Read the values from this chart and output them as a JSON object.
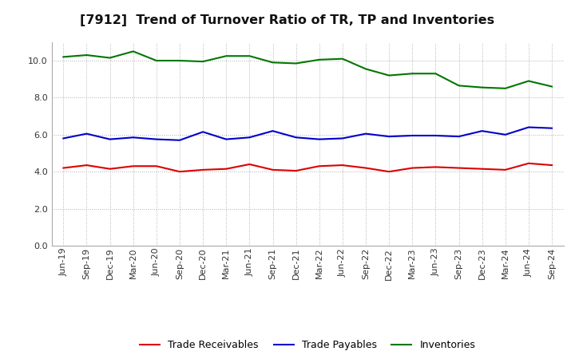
{
  "title": "[7912]  Trend of Turnover Ratio of TR, TP and Inventories",
  "x_labels": [
    "Jun-19",
    "Sep-19",
    "Dec-19",
    "Mar-20",
    "Jun-20",
    "Sep-20",
    "Dec-20",
    "Mar-21",
    "Jun-21",
    "Sep-21",
    "Dec-21",
    "Mar-22",
    "Jun-22",
    "Sep-22",
    "Dec-22",
    "Mar-23",
    "Jun-23",
    "Sep-23",
    "Dec-23",
    "Mar-24",
    "Jun-24",
    "Sep-24"
  ],
  "trade_receivables": [
    4.2,
    4.35,
    4.15,
    4.3,
    4.3,
    4.0,
    4.1,
    4.15,
    4.4,
    4.1,
    4.05,
    4.3,
    4.35,
    4.2,
    4.0,
    4.2,
    4.25,
    4.2,
    4.15,
    4.1,
    4.45,
    4.35
  ],
  "trade_payables": [
    5.8,
    6.05,
    5.75,
    5.85,
    5.75,
    5.7,
    6.15,
    5.75,
    5.85,
    6.2,
    5.85,
    5.75,
    5.8,
    6.05,
    5.9,
    5.95,
    5.95,
    5.9,
    6.2,
    6.0,
    6.4,
    6.35
  ],
  "inventories": [
    10.2,
    10.3,
    10.15,
    10.5,
    10.0,
    10.0,
    9.95,
    10.25,
    10.25,
    9.9,
    9.85,
    10.05,
    10.1,
    9.55,
    9.2,
    9.3,
    9.3,
    8.65,
    8.55,
    8.5,
    8.9,
    8.6
  ],
  "ylim": [
    0.0,
    11.0
  ],
  "yticks": [
    0.0,
    2.0,
    4.0,
    6.0,
    8.0,
    10.0
  ],
  "line_colors": {
    "trade_receivables": "#dd0000",
    "trade_payables": "#0000cc",
    "inventories": "#007700"
  },
  "legend_labels": [
    "Trade Receivables",
    "Trade Payables",
    "Inventories"
  ],
  "background_color": "#ffffff",
  "plot_bg_color": "#ffffff",
  "grid_color": "#999999",
  "title_fontsize": 11.5,
  "tick_fontsize": 8,
  "legend_fontsize": 9,
  "linewidth": 1.5
}
